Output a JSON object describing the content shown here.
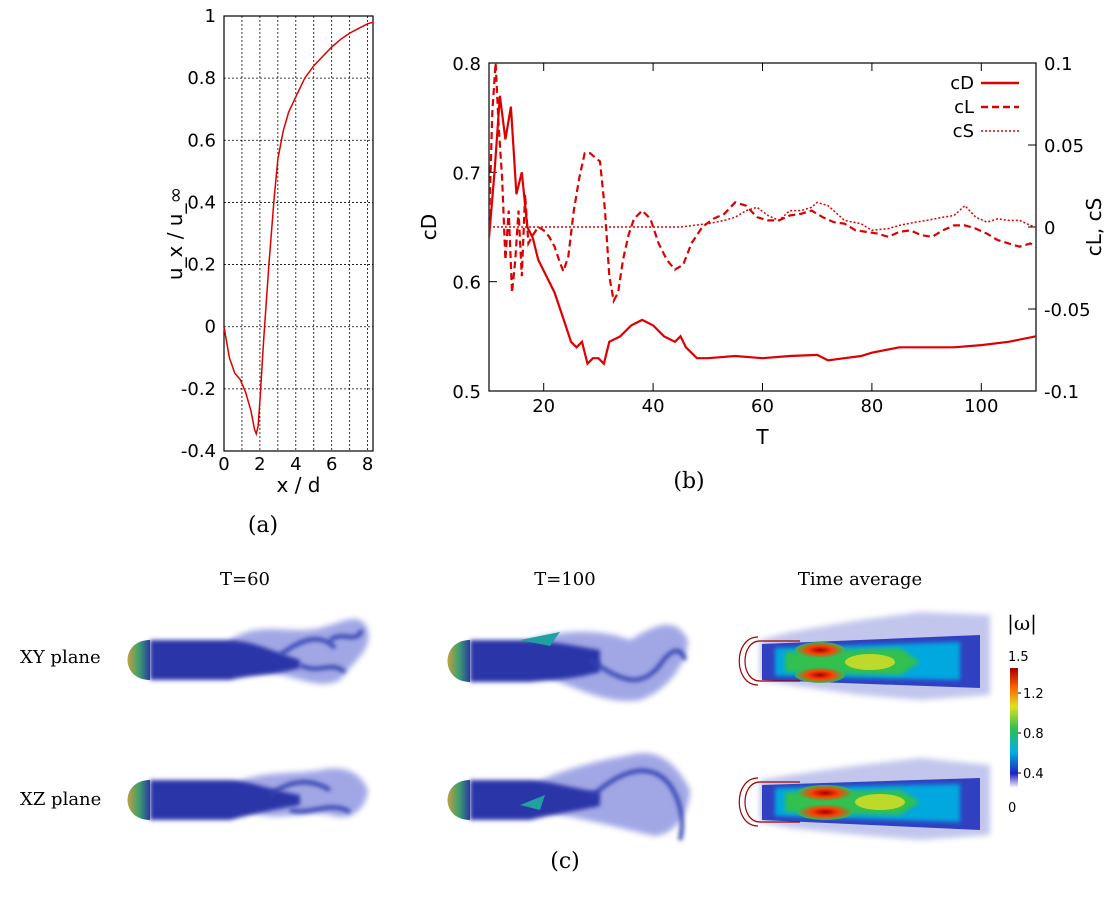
{
  "chart_data": [
    {
      "type": "line",
      "caption": "(a)",
      "xlabel": "x / d",
      "ylabel": "u_x / u_∞",
      "xlim": [
        0,
        8.3
      ],
      "ylim": [
        -0.4,
        1
      ],
      "xticks": [
        0,
        2,
        4,
        6,
        8
      ],
      "yticks": [
        -0.4,
        -0.2,
        0,
        0.2,
        0.4,
        0.6,
        0.8,
        1
      ],
      "grid": true,
      "series": [
        {
          "color": "#dd0000",
          "x": [
            0,
            0.3,
            0.6,
            0.9,
            1.2,
            1.5,
            1.7,
            1.8,
            1.9,
            2.0,
            2.2,
            2.5,
            2.8,
            3.0,
            3.3,
            3.6,
            4.0,
            4.5,
            5.0,
            5.5,
            6.0,
            6.5,
            7.0,
            7.5,
            8.0,
            8.3
          ],
          "y": [
            0,
            -0.1,
            -0.15,
            -0.17,
            -0.21,
            -0.27,
            -0.33,
            -0.345,
            -0.32,
            -0.24,
            -0.05,
            0.2,
            0.42,
            0.54,
            0.63,
            0.69,
            0.74,
            0.8,
            0.84,
            0.87,
            0.9,
            0.925,
            0.945,
            0.96,
            0.975,
            0.98
          ]
        }
      ]
    },
    {
      "type": "line",
      "caption": "(b)",
      "xlabel": "T",
      "ylabel": "cD",
      "ylabel_right": "cL, cS",
      "xlim": [
        10,
        110
      ],
      "ylim": [
        0.5,
        0.8
      ],
      "ylim_right": [
        -0.1,
        0.1
      ],
      "xticks": [
        20,
        40,
        60,
        80,
        100
      ],
      "yticks": [
        0.5,
        0.6,
        0.7,
        0.8
      ],
      "yticks_right": [
        -0.1,
        -0.05,
        0,
        0.05,
        0.1
      ],
      "yticks_right_labels": [
        "-0.1",
        "-0.05",
        "0",
        "0.05",
        "0.1"
      ],
      "grid": false,
      "legend_position": "top-right",
      "series": [
        {
          "name": "cD",
          "axis": "left",
          "dash": "solid",
          "color": "#dd0000",
          "x": [
            10,
            11,
            12,
            13,
            14,
            15,
            16,
            17,
            18,
            19,
            20,
            22,
            24,
            25,
            26,
            27,
            28,
            29,
            30,
            31,
            32,
            34,
            36,
            38,
            40,
            42,
            44,
            45,
            46,
            48,
            50,
            55,
            60,
            65,
            70,
            72,
            75,
            78,
            80,
            85,
            90,
            95,
            100,
            105,
            110
          ],
          "y": [
            0.64,
            0.7,
            0.77,
            0.73,
            0.76,
            0.68,
            0.7,
            0.65,
            0.64,
            0.62,
            0.61,
            0.59,
            0.56,
            0.545,
            0.54,
            0.545,
            0.525,
            0.53,
            0.53,
            0.525,
            0.545,
            0.55,
            0.56,
            0.565,
            0.56,
            0.55,
            0.545,
            0.55,
            0.54,
            0.53,
            0.53,
            0.532,
            0.53,
            0.532,
            0.533,
            0.528,
            0.53,
            0.532,
            0.535,
            0.54,
            0.54,
            0.54,
            0.542,
            0.545,
            0.55
          ]
        },
        {
          "name": "cL",
          "axis": "right",
          "dash": "dashed",
          "color": "#dd0000",
          "x": [
            10,
            10.6,
            11.2,
            11.8,
            12.4,
            13,
            13.6,
            14.2,
            14.8,
            15.4,
            16,
            16.6,
            17.2,
            18,
            19,
            20,
            21,
            22,
            23,
            23.6,
            24.5,
            25.5,
            26.5,
            27.5,
            28.5,
            29.5,
            30.3,
            31.2,
            32,
            32.8,
            33.6,
            34.5,
            35.5,
            36.5,
            38,
            39.5,
            41,
            42.5,
            44,
            45.5,
            47,
            49,
            51,
            53,
            55,
            57,
            59,
            61,
            63,
            65,
            67,
            69,
            71,
            73,
            75,
            77,
            79,
            81,
            83,
            85,
            87,
            89,
            91,
            93,
            95,
            97,
            99,
            101,
            103,
            105,
            107,
            109,
            110
          ],
          "y": [
            0,
            0.07,
            0.1,
            0.06,
            0.03,
            -0.02,
            0.01,
            -0.04,
            -0.02,
            0.01,
            -0.03,
            0.02,
            -0.01,
            -0.005,
            0,
            -0.002,
            -0.006,
            -0.012,
            -0.022,
            -0.027,
            -0.018,
            0.01,
            0.03,
            0.045,
            0.045,
            0.042,
            0.04,
            0.01,
            -0.03,
            -0.045,
            -0.04,
            -0.02,
            -0.005,
            0.005,
            0.01,
            0.005,
            -0.01,
            -0.02,
            -0.026,
            -0.023,
            -0.01,
            0,
            0.005,
            0.008,
            0.015,
            0.013,
            0.006,
            0.004,
            0.004,
            0.007,
            0.008,
            0.01,
            0.006,
            0.003,
            0.002,
            -0.002,
            -0.003,
            -0.004,
            -0.006,
            -0.003,
            -0.002,
            -0.005,
            -0.006,
            -0.002,
            0.001,
            0.001,
            -0.001,
            -0.004,
            -0.008,
            -0.01,
            -0.012,
            -0.01,
            -0.012
          ]
        },
        {
          "name": "cS",
          "axis": "right",
          "dash": "dotted",
          "color": "#dd0000",
          "x": [
            10,
            45,
            50,
            53,
            55,
            57,
            59,
            61,
            63,
            65,
            67,
            69,
            70,
            72,
            75,
            78,
            80,
            83,
            85,
            88,
            90,
            93,
            95,
            97,
            99,
            101,
            103,
            105,
            107,
            109,
            110
          ],
          "y": [
            0,
            0,
            0.002,
            0.004,
            0.006,
            0.01,
            0.012,
            0.007,
            0.004,
            0.01,
            0.01,
            0.012,
            0.015,
            0.013,
            0.004,
            0.002,
            -0.002,
            -0.001,
            0.001,
            0.003,
            0.004,
            0.006,
            0.007,
            0.013,
            0.006,
            0.003,
            0.005,
            0.004,
            0.004,
            0.001,
            0
          ]
        }
      ]
    }
  ],
  "panel_c": {
    "caption": "(c)",
    "column_titles": [
      "T=60",
      "T=100",
      "Time average"
    ],
    "row_labels": [
      "XY plane",
      "XZ plane"
    ],
    "colorbar": {
      "title": "|ω|",
      "max_label": "1.5",
      "tick_labels": [
        "1.2",
        "0.8",
        "0.4"
      ],
      "min_label": "0",
      "colors": [
        "#ffffff",
        "#2020c0",
        "#00b0e0",
        "#30c050",
        "#e0e020",
        "#ff6000",
        "#a00000"
      ]
    }
  }
}
